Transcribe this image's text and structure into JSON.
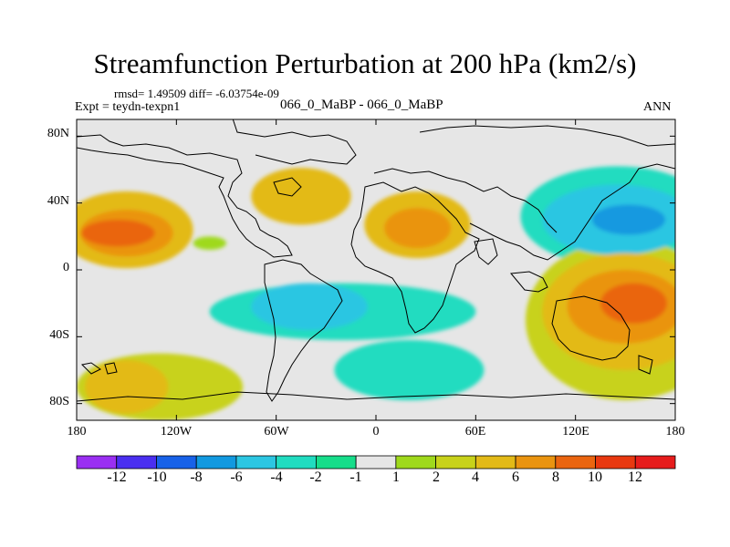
{
  "chart_data": {
    "type": "heatmap",
    "title": "Streamfunction Perturbation at 200 hPa (km2/s)",
    "stats": "rmsd= 1.49509 diff= -6.03754e-09",
    "experiment": "Expt = teydn-texpn1",
    "case_label": "066_0_MaBP - 066_0_MaBP",
    "season": "ANN",
    "x_range": [
      -180,
      180
    ],
    "y_range": [
      -90,
      90
    ],
    "x_ticks": [
      {
        "value": -180,
        "label": "180"
      },
      {
        "value": -120,
        "label": "120W"
      },
      {
        "value": -60,
        "label": "60W"
      },
      {
        "value": 0,
        "label": "0"
      },
      {
        "value": 60,
        "label": "60E"
      },
      {
        "value": 120,
        "label": "120E"
      },
      {
        "value": 180,
        "label": "180"
      }
    ],
    "y_ticks": [
      {
        "value": 80,
        "label": "80N"
      },
      {
        "value": 40,
        "label": "40N"
      },
      {
        "value": 0,
        "label": "0"
      },
      {
        "value": -40,
        "label": "40S"
      },
      {
        "value": -80,
        "label": "80S"
      }
    ],
    "colorbar": {
      "labels": [
        "-12",
        "-10",
        "-8",
        "-6",
        "-4",
        "-2",
        "-1",
        "1",
        "2",
        "4",
        "6",
        "8",
        "10",
        "12"
      ],
      "colors": [
        "#9a2ff2",
        "#4a2ff0",
        "#1862e8",
        "#1299e0",
        "#2cc6e2",
        "#20dcc0",
        "#16dd8a",
        "#e6e6e6",
        "#9fd91c",
        "#c8d21a",
        "#e3ba18",
        "#ea9410",
        "#ea6510",
        "#e83810",
        "#e61c1c"
      ]
    },
    "fields": [
      {
        "name": "north-pacific-high",
        "lon": -155,
        "lat": 22,
        "level": 5,
        "rx": 22,
        "ry": 8
      },
      {
        "name": "north-pacific-ridge",
        "lon": -150,
        "lat": 22,
        "level": 4,
        "rx": 28,
        "ry": 14
      },
      {
        "name": "north-pacific-ridge-outer",
        "lon": -150,
        "lat": 24,
        "level": 3,
        "rx": 40,
        "ry": 23
      },
      {
        "name": "north-pacific-low",
        "lon": -100,
        "lat": 16,
        "level": 1,
        "rx": 10,
        "ry": 4
      },
      {
        "name": "north-atlantic-high",
        "lon": -45,
        "lat": 44,
        "level": 3,
        "rx": 30,
        "ry": 17
      },
      {
        "name": "africa-high",
        "lon": 25,
        "lat": 25,
        "level": 4,
        "rx": 20,
        "ry": 12
      },
      {
        "name": "africa-ridge",
        "lon": 25,
        "lat": 27,
        "level": 3,
        "rx": 32,
        "ry": 20
      },
      {
        "name": "west-pacific-low-core",
        "lon": 152,
        "lat": 30,
        "level": -4,
        "rx": 22,
        "ry": 9
      },
      {
        "name": "west-pacific-low",
        "lon": 145,
        "lat": 30,
        "level": -3,
        "rx": 45,
        "ry": 21
      },
      {
        "name": "west-pacific-trough",
        "lon": 145,
        "lat": 32,
        "level": -2,
        "rx": 58,
        "ry": 30
      },
      {
        "name": "tropical-atlantic-low",
        "lon": -40,
        "lat": -22,
        "level": -3,
        "rx": 35,
        "ry": 14
      },
      {
        "name": "tropical-trough",
        "lon": -20,
        "lat": -25,
        "level": -2,
        "rx": 80,
        "ry": 17
      },
      {
        "name": "south-pacific-high-core",
        "lon": 155,
        "lat": -20,
        "level": 5,
        "rx": 20,
        "ry": 12
      },
      {
        "name": "south-pacific-high",
        "lon": 150,
        "lat": -22,
        "level": 4,
        "rx": 35,
        "ry": 22
      },
      {
        "name": "south-pacific-ridge",
        "lon": 150,
        "lat": -25,
        "level": 3,
        "rx": 50,
        "ry": 35
      },
      {
        "name": "south-pacific-outer",
        "lon": 150,
        "lat": -30,
        "level": 2,
        "rx": 60,
        "ry": 48
      },
      {
        "name": "southern-ocean-ridge",
        "lon": -150,
        "lat": -70,
        "level": 3,
        "rx": 25,
        "ry": 16
      },
      {
        "name": "southern-ocean-outer",
        "lon": -130,
        "lat": -70,
        "level": 2,
        "rx": 50,
        "ry": 20
      },
      {
        "name": "southern-indian-trough",
        "lon": 20,
        "lat": -60,
        "level": -2,
        "rx": 45,
        "ry": 18
      }
    ]
  }
}
